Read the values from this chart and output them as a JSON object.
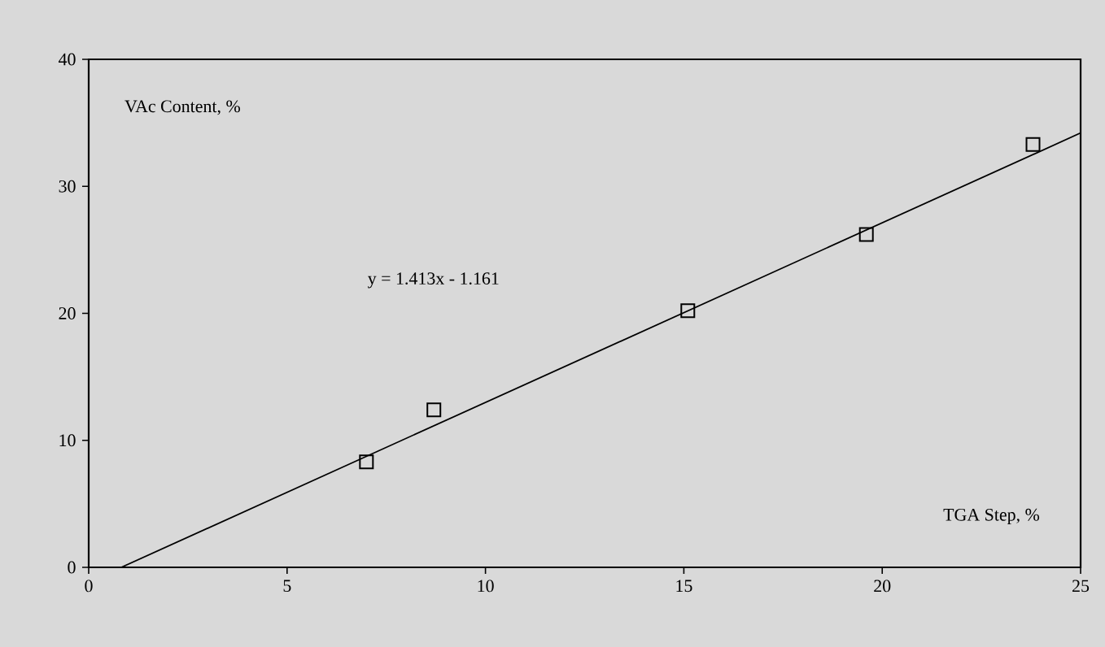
{
  "chart_data": {
    "type": "scatter",
    "xlabel": "TGA Step, %",
    "ylabel": "VAc Content, %",
    "annotations": [
      "y = 1.413x - 1.161"
    ],
    "xlim": [
      0,
      25
    ],
    "ylim": [
      0,
      40
    ],
    "xticks": [
      0,
      5,
      10,
      15,
      20,
      25
    ],
    "yticks": [
      0,
      10,
      20,
      30,
      40
    ],
    "grid": false,
    "marker": "square",
    "series": [
      {
        "color": "#000000",
        "x": [
          7.0,
          8.7,
          15.1,
          19.6,
          23.8
        ],
        "values": [
          8.3,
          12.4,
          20.2,
          26.2,
          33.3
        ]
      },
      {
        "type": "line",
        "color": "#000000",
        "x": [
          0.82,
          25
        ],
        "values": [
          0,
          34.2
        ],
        "marker": "none",
        "line_style": "solid"
      }
    ]
  }
}
